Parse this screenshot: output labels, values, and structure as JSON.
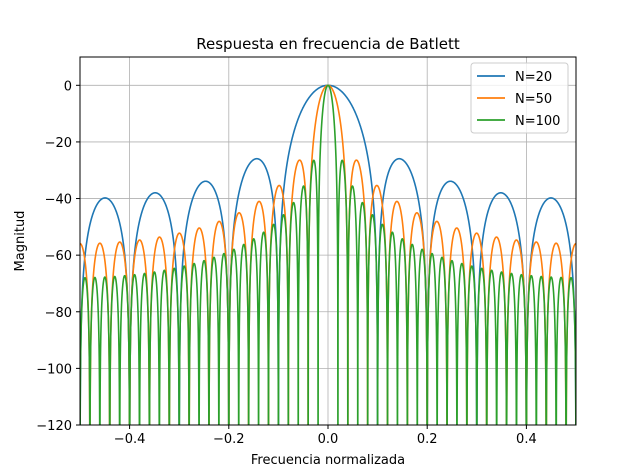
{
  "chart_data": {
    "type": "line",
    "title": "Respuesta en frecuencia de Batlett",
    "xlabel": "Frecuencia normalizada",
    "ylabel": "Magnitud",
    "xlim": [
      -0.5,
      0.5
    ],
    "ylim": [
      -120,
      10
    ],
    "xticks": [
      -0.4,
      -0.2,
      0.0,
      0.2,
      0.4
    ],
    "xtick_labels": [
      "−0.4",
      "−0.2",
      "0.0",
      "0.2",
      "0.4"
    ],
    "yticks": [
      0,
      -20,
      -40,
      -60,
      -80,
      -100,
      -120
    ],
    "ytick_labels": [
      "0",
      "−20",
      "−40",
      "−60",
      "−80",
      "−100",
      "−120"
    ],
    "grid": true,
    "legend_position": "top-right",
    "series": [
      {
        "name": "N=20",
        "N": 20,
        "color": "#1f77b4",
        "peaks": [
          {
            "x": 0.0,
            "y": 0
          },
          {
            "x": 0.15,
            "y": -26
          },
          {
            "x": 0.25,
            "y": -34
          },
          {
            "x": 0.35,
            "y": -38
          },
          {
            "x": 0.45,
            "y": -40
          }
        ]
      },
      {
        "name": "N=50",
        "N": 50,
        "color": "#ff7f0e",
        "peaks": [
          {
            "x": 0.0,
            "y": 0
          },
          {
            "x": 0.06,
            "y": -26
          },
          {
            "x": 0.1,
            "y": -34
          },
          {
            "x": 0.14,
            "y": -38
          },
          {
            "x": 0.5,
            "y": -56
          }
        ]
      },
      {
        "name": "N=100",
        "N": 100,
        "color": "#2ca02c",
        "peaks": [
          {
            "x": 0.0,
            "y": 0
          },
          {
            "x": 0.03,
            "y": -26
          },
          {
            "x": 0.05,
            "y": -34
          },
          {
            "x": 0.07,
            "y": -38
          },
          {
            "x": 0.5,
            "y": -68
          }
        ]
      }
    ]
  }
}
